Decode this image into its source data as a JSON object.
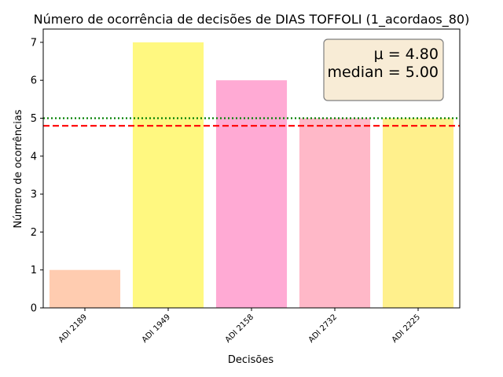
{
  "chart_data": {
    "type": "bar",
    "title": "Número de ocorrência de decisões de DIAS TOFFOLI (1_acordaos_80)",
    "xlabel": "Decisões",
    "ylabel": "Número de ocorrências",
    "categories": [
      "ADI 2189",
      "ADI 1949",
      "ADI 2158",
      "ADI 2732",
      "ADI 2225"
    ],
    "values": [
      1,
      7,
      6,
      5,
      5
    ],
    "bar_colors": [
      "#ffccb0",
      "#fff880",
      "#ffaad4",
      "#ffb8c8",
      "#fff08c"
    ],
    "ylim": [
      0,
      7.35
    ],
    "yticks": [
      0,
      1,
      2,
      3,
      4,
      5,
      6,
      7
    ],
    "mean": 4.8,
    "median": 5.0,
    "mean_line_color": "#ff0000",
    "median_line_color": "#008000",
    "stats_box": {
      "mean_label": "μ = 4.80",
      "median_label": "median = 5.00",
      "placement": "top-right",
      "background": "#f8ecd6"
    },
    "grid": false,
    "legend": "none"
  }
}
